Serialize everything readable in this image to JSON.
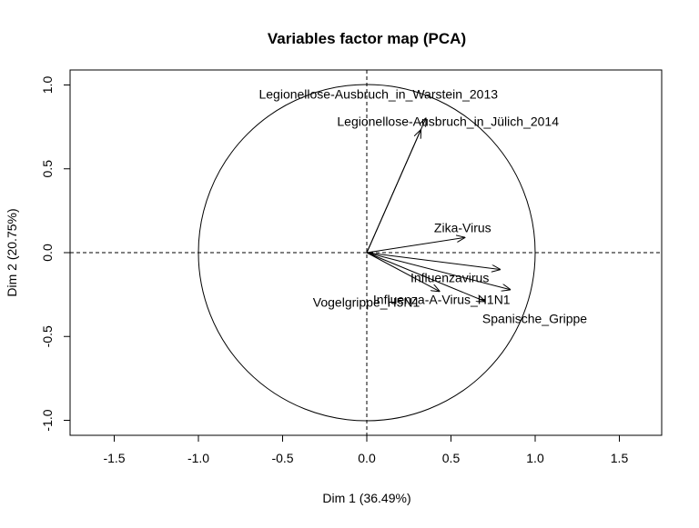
{
  "chart_data": {
    "type": "scatter",
    "subtype": "pca-variables-factor-map",
    "title": "Variables factor map (PCA)",
    "xlabel": "Dim 1 (36.49%)",
    "ylabel": "Dim 2 (20.75%)",
    "xlim": [
      -1.75,
      1.75
    ],
    "ylim": [
      -1.08,
      1.08
    ],
    "x_ticks": [
      -1.5,
      -1.0,
      -0.5,
      0.0,
      0.5,
      1.0,
      1.5
    ],
    "x_tick_labels": [
      "-1.5",
      "-1.0",
      "-0.5",
      "0.0",
      "0.5",
      "1.0",
      "1.5"
    ],
    "y_ticks": [
      -1.0,
      -0.5,
      0.0,
      0.5,
      1.0
    ],
    "y_tick_labels": [
      "-1.0",
      "-0.5",
      "0.0",
      "0.5",
      "1.0"
    ],
    "unit_circle": true,
    "reference_lines": "dashed at x=0 and y=0",
    "grid": false,
    "variables": [
      {
        "name": "Legionellose-Ausbruch_in_Warstein_2013",
        "x": 0.35,
        "y": 0.8
      },
      {
        "name": "Legionellose-Ausbruch_in_Jülich_2014",
        "x": 0.32,
        "y": 0.73
      },
      {
        "name": "Zika-Virus",
        "x": 0.58,
        "y": 0.09
      },
      {
        "name": "Influenzavirus",
        "x": 0.79,
        "y": -0.1
      },
      {
        "name": "Influenza-A-Virus_H1N1",
        "x": 0.85,
        "y": -0.22
      },
      {
        "name": "Spanische_Grippe",
        "x": 0.7,
        "y": -0.29
      },
      {
        "name": "Vogelgrippe_H5N1",
        "x": 0.43,
        "y": -0.23
      }
    ]
  }
}
